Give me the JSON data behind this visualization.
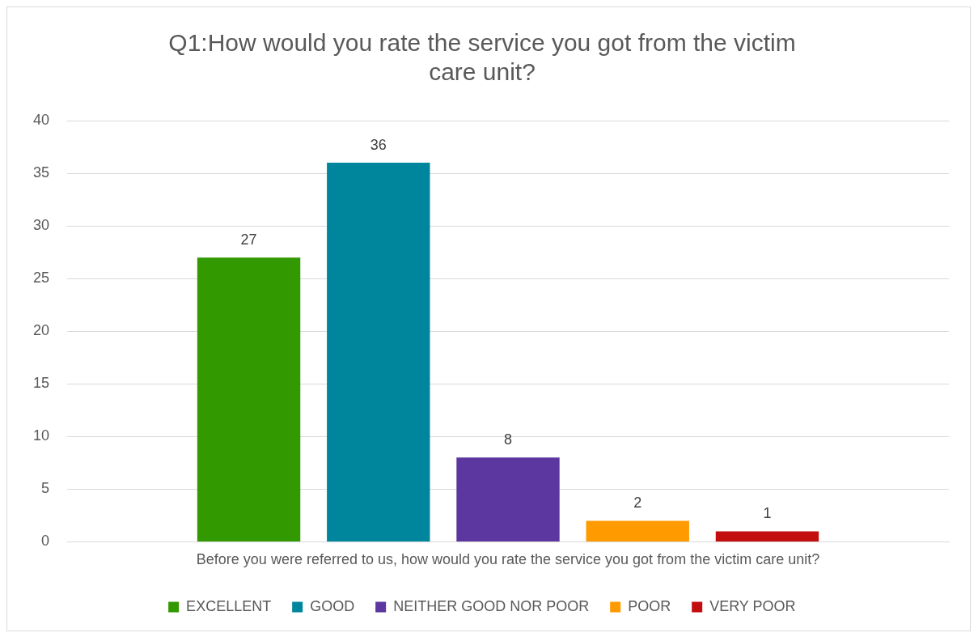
{
  "chart_data": {
    "type": "bar",
    "title": "Q1:How would you rate the service you got from the victim care unit?",
    "categories": [
      "Before you were referred to us, how would you rate the service you got from the victim care unit?"
    ],
    "series": [
      {
        "name": "EXCELLENT",
        "color": "#339900",
        "values": [
          27
        ]
      },
      {
        "name": "GOOD",
        "color": "#00869c",
        "values": [
          36
        ]
      },
      {
        "name": "NEITHER GOOD NOR POOR",
        "color": "#5c37a0",
        "values": [
          8
        ]
      },
      {
        "name": "POOR",
        "color": "#ff9a00",
        "values": [
          2
        ]
      },
      {
        "name": "VERY POOR",
        "color": "#c20e0e",
        "values": [
          1
        ]
      }
    ],
    "ylim": [
      0,
      40
    ],
    "yticks": [
      0,
      5,
      10,
      15,
      20,
      25,
      30,
      35,
      40
    ],
    "grid": "y",
    "legend": "bottom",
    "data_labels": true
  }
}
